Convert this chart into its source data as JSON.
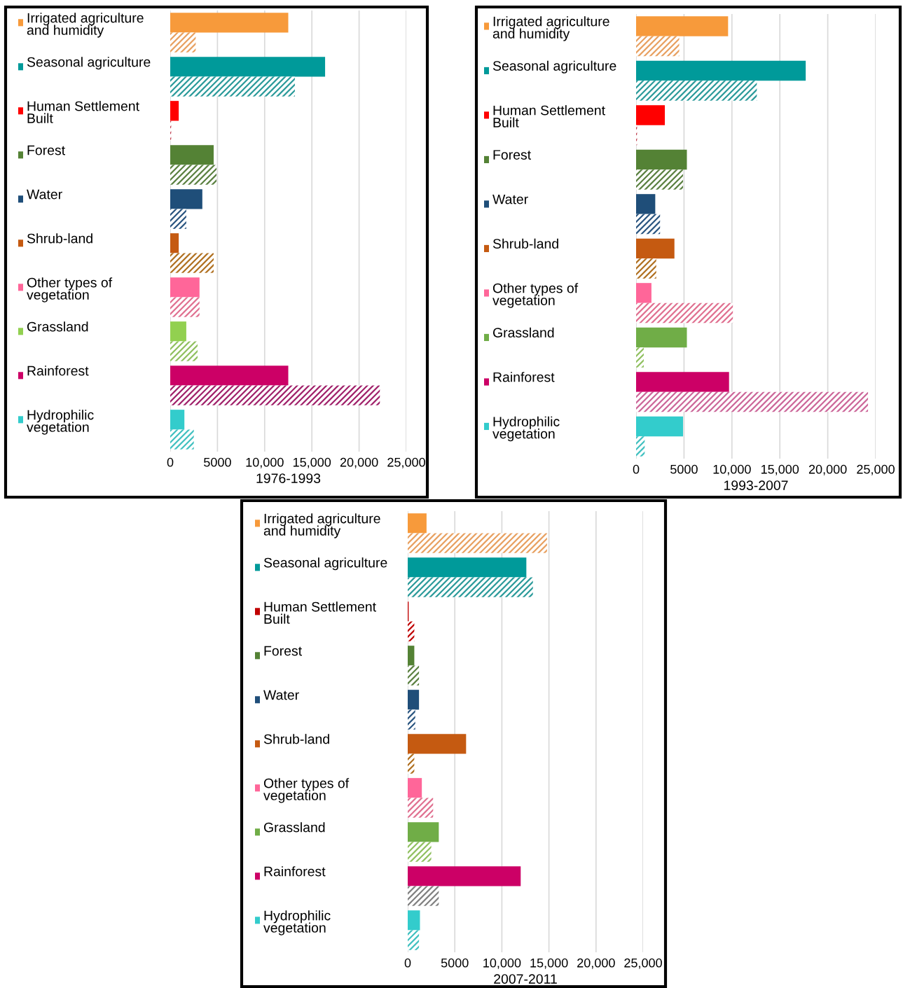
{
  "chart_data": [
    {
      "type": "bar",
      "orientation": "horizontal",
      "xlabel": "1976-1993",
      "grid": "x",
      "xlim": [
        0,
        25000
      ],
      "xticks": [
        0,
        5000,
        {
          "value": 10000,
          "label": "10,000"
        },
        {
          "value": 15000,
          "label": "15,000"
        },
        {
          "value": 20000,
          "label": "20,000"
        },
        {
          "value": 25000,
          "label": "25,000"
        }
      ],
      "categories": [
        "Irrigated agriculture\nand humidity",
        "Seasonal agriculture",
        "Human Settlement\nBuilt",
        "Forest",
        "Water",
        "Shrub-land",
        "Other types of\nvegetation",
        "Grassland",
        "Rainforest",
        "Hydrophilic\nvegetation"
      ],
      "series": [
        {
          "colors": [
            "#f79a3b",
            "#009a9a",
            "#ff0000",
            "#548235",
            "#1f4e79",
            "#c55a11",
            "#ff6699",
            "#92d050",
            "#cc0066",
            "#33cccc"
          ],
          "values": [
            12500,
            16400,
            900,
            4600,
            3400,
            900,
            3100,
            1700,
            12500,
            1500
          ]
        },
        {
          "colors": [
            "#e8a060",
            "#2a9a9a",
            "#c04050",
            "#5a8040",
            "#2a5580",
            "#b07020",
            "#e07090",
            "#90c060",
            "#a0206a",
            "#40c0c0"
          ],
          "values": [
            2700,
            13200,
            100,
            4900,
            1700,
            4600,
            3100,
            2900,
            22200,
            2500
          ]
        }
      ]
    },
    {
      "type": "bar",
      "orientation": "horizontal",
      "xlabel": "1993-2007",
      "grid": "x",
      "xlim": [
        0,
        25000
      ],
      "xticks": [
        0,
        5000,
        {
          "value": 10000,
          "label": "10,000"
        },
        {
          "value": 15000,
          "label": "15,000"
        },
        {
          "value": 20000,
          "label": "20,000"
        },
        {
          "value": 25000,
          "label": "25,000"
        }
      ],
      "categories": [
        "Irrigated agriculture\nand humidity",
        "Seasonal agriculture",
        "Human Settlement\nBuilt",
        "Forest",
        "Water",
        "Shrub-land",
        "Other types of\nvegetation",
        "Grassland",
        "Rainforest",
        "Hydrophilic\nvegetation"
      ],
      "series": [
        {
          "colors": [
            "#f79a3b",
            "#009a9a",
            "#ff0000",
            "#548235",
            "#1f4e79",
            "#c55a11",
            "#ff6699",
            "#70ad47",
            "#cc0066",
            "#33cccc"
          ],
          "values": [
            9600,
            17700,
            3000,
            5300,
            2000,
            4000,
            1600,
            5300,
            9700,
            4900
          ]
        },
        {
          "colors": [
            "#e8a060",
            "#2a9a9a",
            "#c04050",
            "#5a8040",
            "#2a5580",
            "#b07020",
            "#e07090",
            "#90c060",
            "#cc6699",
            "#40c0c0"
          ],
          "values": [
            4500,
            12600,
            100,
            4900,
            2500,
            2100,
            10100,
            800,
            24200,
            900
          ]
        }
      ]
    },
    {
      "type": "bar",
      "orientation": "horizontal",
      "xlabel": "2007-2011",
      "grid": "x",
      "xlim": [
        0,
        25000
      ],
      "xticks": [
        0,
        5000,
        {
          "value": 10000,
          "label": "10,000"
        },
        {
          "value": 15000,
          "label": "15,000"
        },
        {
          "value": 20000,
          "label": "20,000"
        },
        {
          "value": 25000,
          "label": "25,000"
        }
      ],
      "categories": [
        "Irrigated agriculture\nand humidity",
        "Seasonal agriculture",
        "Human Settlement\nBuilt",
        "Forest",
        "Water",
        "Shrub-land",
        "Other types of\nvegetation",
        "Grassland",
        "Rainforest",
        "Hydrophilic\nvegetation"
      ],
      "series": [
        {
          "colors": [
            "#f79a3b",
            "#009a9a",
            "#c00000",
            "#548235",
            "#1f4e79",
            "#c55a11",
            "#ff6699",
            "#70ad47",
            "#cc0066",
            "#33cccc"
          ],
          "values": [
            2000,
            12600,
            100,
            700,
            1200,
            6200,
            1500,
            3300,
            12000,
            1300
          ]
        },
        {
          "colors": [
            "#e8a060",
            "#2a9a9a",
            "#c00000",
            "#5a8040",
            "#2a5580",
            "#b07020",
            "#e07090",
            "#90c060",
            "#808080",
            "#40c0c0"
          ],
          "values": [
            14800,
            13300,
            700,
            1200,
            800,
            700,
            2700,
            2500,
            3300,
            1200
          ]
        }
      ]
    }
  ]
}
